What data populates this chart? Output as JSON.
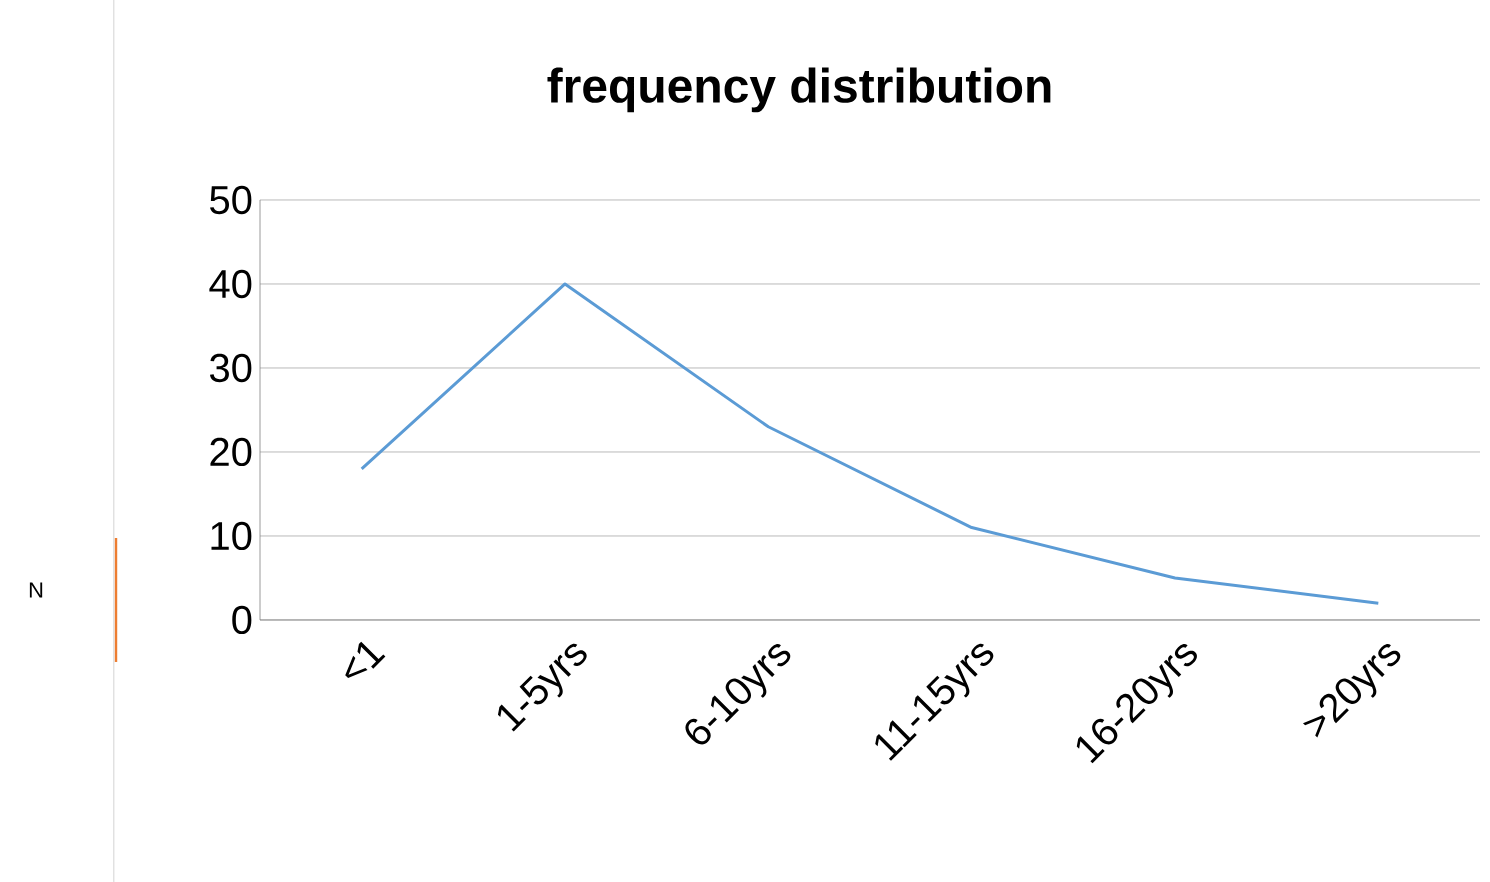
{
  "chart_data": {
    "type": "line",
    "title": "frequency distribution",
    "annotations": [
      "N"
    ],
    "categories": [
      "<1",
      "1-5yrs",
      "6-10yrs",
      "11-15yrs",
      "16-20yrs",
      ">20yrs"
    ],
    "series": [
      {
        "color": "#5b9bd5",
        "values": [
          18,
          40,
          23,
          11,
          5,
          2
        ]
      }
    ],
    "ylim": [
      0,
      50
    ],
    "yticks": [
      0,
      10,
      20,
      30,
      40,
      50
    ],
    "grid": "y",
    "marker": "none",
    "line_style": "solid"
  }
}
